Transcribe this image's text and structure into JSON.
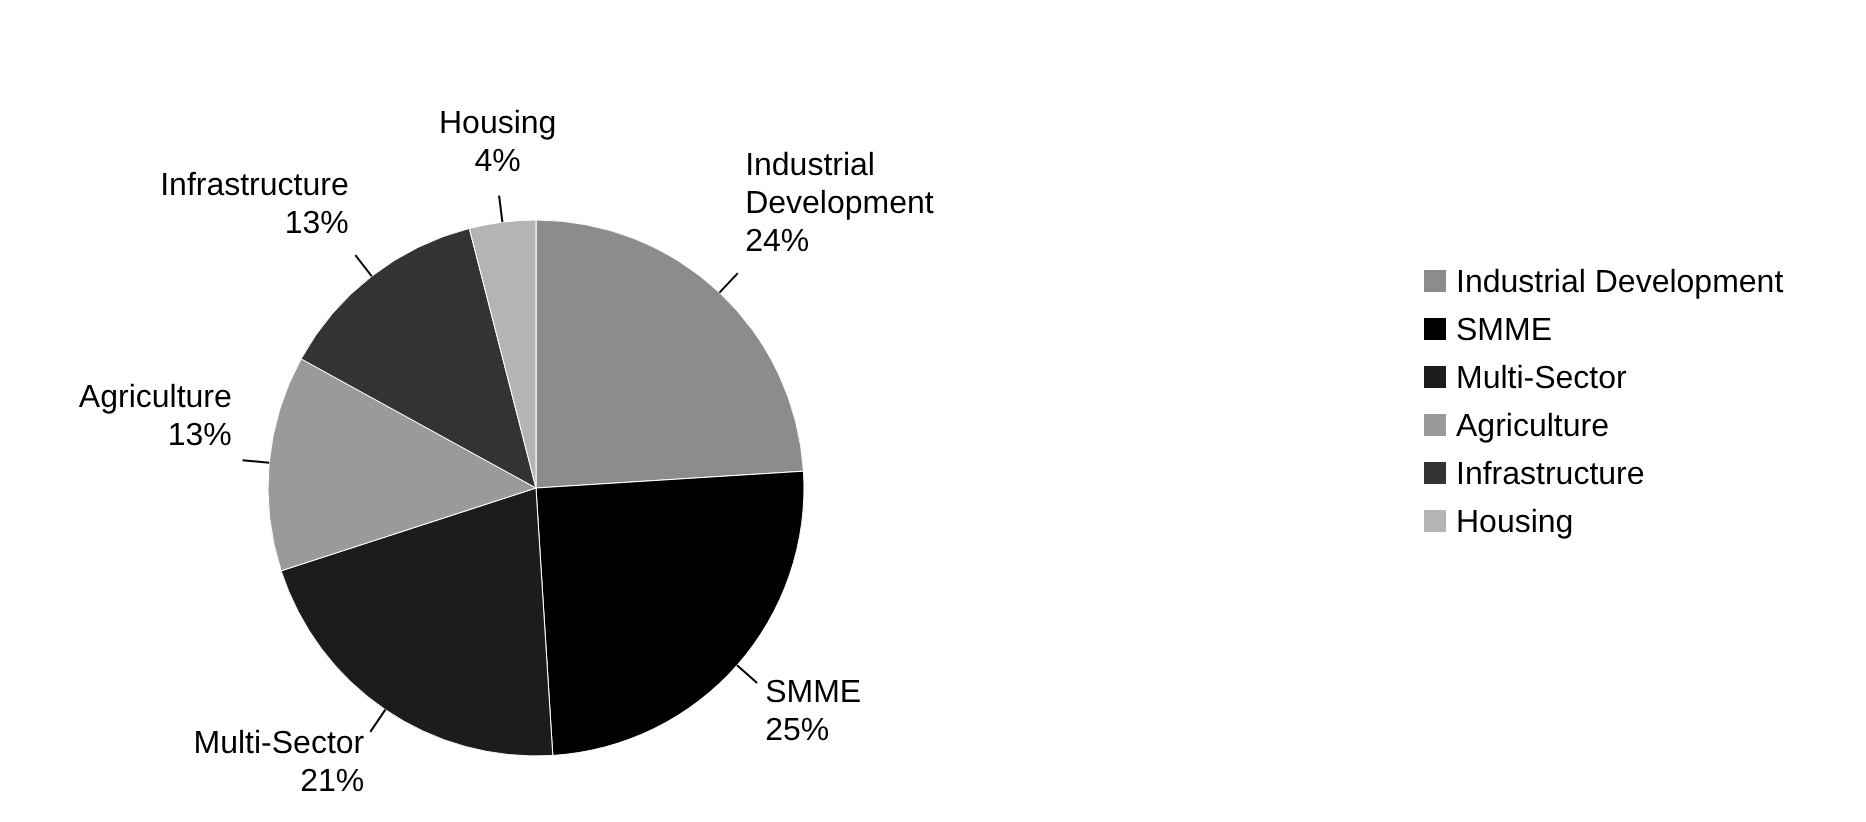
{
  "chart_data": {
    "type": "pie",
    "categories": [
      "Industrial Development",
      "SMME",
      "Multi-Sector",
      "Agriculture",
      "Infrastructure",
      "Housing"
    ],
    "values": [
      24,
      25,
      21,
      13,
      13,
      4
    ],
    "value_labels": [
      "24%",
      "25%",
      "21%",
      "13%",
      "13%",
      "4%"
    ],
    "colors": [
      "#8c8c8c",
      "#000000",
      "#1c1c1c",
      "#9a9a9a",
      "#333333",
      "#b4b4b4"
    ],
    "legend": "right"
  }
}
